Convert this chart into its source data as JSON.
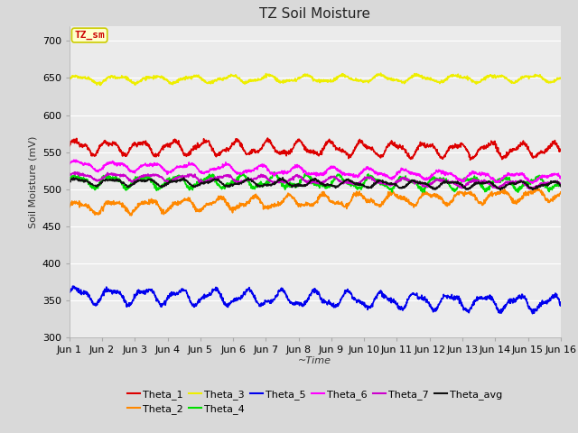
{
  "title": "TZ Soil Moisture",
  "ylabel": "Soil Moisture (mV)",
  "xlabel": "~Time",
  "ylim": [
    300,
    720
  ],
  "yticks": [
    300,
    350,
    400,
    450,
    500,
    550,
    600,
    650,
    700
  ],
  "x_labels": [
    "Jun 1",
    "Jun 2",
    "Jun 3",
    "Jun 4",
    "Jun 5",
    "Jun 6",
    "Jun 7",
    "Jun 8",
    "Jun 9",
    "Jun 10",
    "Jun 11",
    "Jun 12",
    "Jun 13",
    "Jun 14",
    "Jun 15",
    "Jun 16"
  ],
  "n_points": 1500,
  "series": [
    {
      "name": "Theta_1",
      "color": "#dd0000",
      "base": 557,
      "amp": 8,
      "freq": 15.5,
      "trend": -0.003,
      "noise": 1.5
    },
    {
      "name": "Theta_2",
      "color": "#ff8800",
      "base": 475,
      "amp": 7,
      "freq": 14.0,
      "trend": 0.012,
      "noise": 1.5
    },
    {
      "name": "Theta_3",
      "color": "#eeee00",
      "base": 648,
      "amp": 4,
      "freq": 13.0,
      "trend": 0.001,
      "noise": 1.0
    },
    {
      "name": "Theta_4",
      "color": "#00dd00",
      "base": 511,
      "amp": 7,
      "freq": 15.0,
      "trend": -0.002,
      "noise": 1.5
    },
    {
      "name": "Theta_5",
      "color": "#0000ee",
      "base": 358,
      "amp": 9,
      "freq": 14.5,
      "trend": -0.008,
      "noise": 1.5
    },
    {
      "name": "Theta_6",
      "color": "#ff00ff",
      "base": 533,
      "amp": 5,
      "freq": 13.5,
      "trend": -0.012,
      "noise": 1.0
    },
    {
      "name": "Theta_7",
      "color": "#cc00cc",
      "base": 518,
      "amp": 4,
      "freq": 13.5,
      "trend": -0.008,
      "noise": 1.0
    },
    {
      "name": "Theta_avg",
      "color": "#111111",
      "base": 510,
      "amp": 4,
      "freq": 14.5,
      "trend": -0.003,
      "noise": 0.8
    }
  ],
  "bg_color": "#d9d9d9",
  "plot_bg_color": "#ebebeb",
  "grid_color": "#ffffff",
  "label_box_color": "#ffffcc",
  "label_box_edge": "#cccc00",
  "label_text_color": "#cc0000",
  "label_text": "TZ_sm",
  "title_fontsize": 11,
  "axis_fontsize": 8,
  "tick_fontsize": 8
}
